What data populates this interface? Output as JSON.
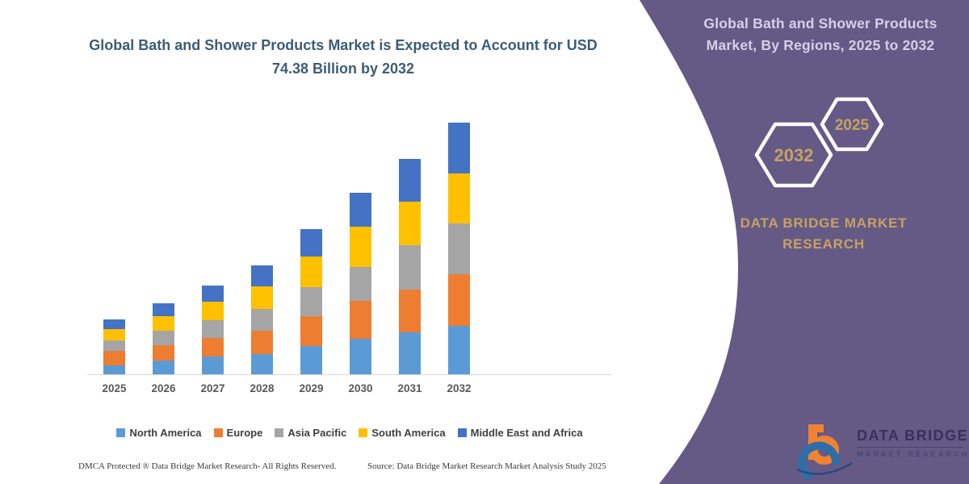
{
  "left_panel": {
    "title": "Global Bath and Shower Products Market is Expected to Account for USD 74.38 Billion by 2032",
    "footer_left": "DMCA Protected ® Data Bridge Market Research-  All Rights Reserved.",
    "footer_source": "Source: Data Bridge Market Research  Market Analysis Study 2025"
  },
  "chart_data": {
    "type": "bar",
    "stacked": true,
    "title": "Global Bath and Shower Products Market is Expected to Account for USD 74.38 Billion by 2032",
    "unit": "USD Billion",
    "categories": [
      "2025",
      "2026",
      "2027",
      "2028",
      "2029",
      "2030",
      "2031",
      "2032"
    ],
    "series": [
      {
        "name": "North America",
        "color": "#5B9BD5",
        "values": [
          2.6,
          4.1,
          5.2,
          6.0,
          8.4,
          10.4,
          12.3,
          14.3
        ]
      },
      {
        "name": "Europe",
        "color": "#ED7D31",
        "values": [
          4.3,
          4.5,
          5.5,
          6.8,
          8.8,
          11.2,
          12.8,
          15.2
        ]
      },
      {
        "name": "Asia Pacific",
        "color": "#A5A5A5",
        "values": [
          3.0,
          4.2,
          5.3,
          6.4,
          8.4,
          10.0,
          13.0,
          15.0
        ]
      },
      {
        "name": "South America",
        "color": "#FFC000",
        "values": [
          3.4,
          4.3,
          5.4,
          6.8,
          9.2,
          12.0,
          12.8,
          14.8
        ]
      },
      {
        "name": "Middle East and Africa",
        "color": "#4472C4",
        "values": [
          2.8,
          3.8,
          4.8,
          6.2,
          8.0,
          10.0,
          12.6,
          15.08
        ]
      }
    ],
    "totals": [
      16.1,
      20.9,
      26.2,
      32.2,
      42.8,
      53.6,
      63.5,
      74.38
    ],
    "ylim": [
      0,
      80
    ],
    "grid": false,
    "y_axis_shown": false,
    "legend_position": "bottom",
    "axis_color": "#d9d9d9"
  },
  "right_panel": {
    "bg_color": "#655A86",
    "accent_color": "#c6a261",
    "title": "Global Bath and Shower Products Market, By Regions, 2025 to 2032",
    "hexagons": [
      {
        "label": "2032"
      },
      {
        "label": "2025"
      }
    ],
    "brand_text": "DATA BRIDGE MARKET RESEARCH",
    "logo": {
      "wordmark": "DATA BRIDGE",
      "subtext": "MARKET RESEARCH"
    }
  }
}
